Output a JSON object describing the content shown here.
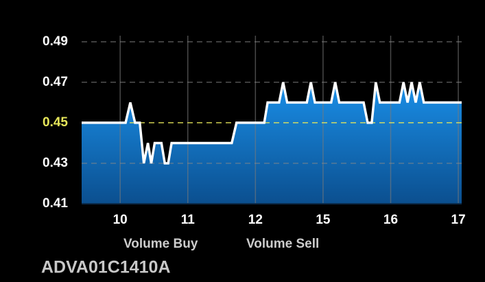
{
  "chart_data": {
    "type": "line",
    "title": "ADVA01C1410A",
    "legend": [
      "Volume Buy",
      "Volume Sell"
    ],
    "x": [
      -0.57,
      0.08,
      0.15,
      0.22,
      0.29,
      0.35,
      0.41,
      0.46,
      0.51,
      0.61,
      0.66,
      0.71,
      0.76,
      1.65,
      1.72,
      2.13,
      2.18,
      2.35,
      2.41,
      2.47,
      2.76,
      2.82,
      2.88,
      3.12,
      3.18,
      3.24,
      3.6,
      3.66,
      3.72,
      3.78,
      3.84,
      4.13,
      4.19,
      4.25,
      4.31,
      4.37,
      4.43,
      4.49,
      5.05
    ],
    "series": [
      {
        "color": "#ffffff",
        "fill": "#1a8fe8",
        "values": [
          0.45,
          0.45,
          0.46,
          0.45,
          0.45,
          0.43,
          0.44,
          0.43,
          0.44,
          0.44,
          0.43,
          0.43,
          0.44,
          0.44,
          0.45,
          0.45,
          0.46,
          0.46,
          0.47,
          0.46,
          0.46,
          0.47,
          0.46,
          0.46,
          0.47,
          0.46,
          0.46,
          0.45,
          0.45,
          0.47,
          0.46,
          0.46,
          0.47,
          0.46,
          0.47,
          0.46,
          0.47,
          0.46,
          0.46
        ]
      }
    ],
    "xlim": [
      -0.57,
      5.05
    ],
    "xticks": [
      {
        "value": 0,
        "label": "10"
      },
      {
        "value": 1,
        "label": "11"
      },
      {
        "value": 2,
        "label": "12"
      },
      {
        "value": 3,
        "label": "15"
      },
      {
        "value": 4,
        "label": "16"
      },
      {
        "value": 5,
        "label": "17"
      }
    ],
    "ylim": [
      0.41,
      0.493
    ],
    "yticks": [
      0.41,
      0.43,
      0.45,
      0.47,
      0.49
    ],
    "highlight_value": 0.45,
    "highlight_color": "#e6e65a",
    "grid": true
  }
}
